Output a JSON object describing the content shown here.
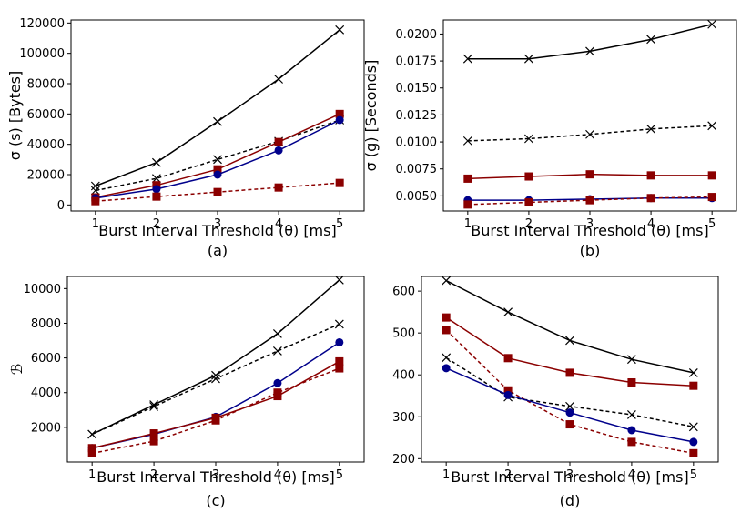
{
  "chart_data": [
    {
      "type": "line",
      "panel": "a",
      "caption": "(a)",
      "xlabel": "Burst Interval Threshold (θ) [ms]",
      "ylabel": "σ (s) [Bytes]",
      "x": [
        1,
        2,
        3,
        4,
        5
      ],
      "xticks": [
        "1",
        "2",
        "3",
        "4",
        "5"
      ],
      "xlim": [
        0.6,
        5.4
      ],
      "ylim": [
        -4000,
        122000
      ],
      "yticks": [
        0,
        20000,
        40000,
        60000,
        80000,
        100000,
        120000
      ],
      "yticklabels": [
        "0",
        "20000",
        "40000",
        "60000",
        "80000",
        "100000",
        "120000"
      ],
      "series": [
        {
          "name": "black-x-solid",
          "color": "#000000",
          "marker": "x",
          "dash": false,
          "values": [
            12500,
            28000,
            55000,
            83000,
            115500
          ]
        },
        {
          "name": "black-x-dashed",
          "color": "#000000",
          "marker": "x",
          "dash": true,
          "values": [
            9500,
            17500,
            30000,
            42000,
            56000
          ]
        },
        {
          "name": "red-square-solid",
          "color": "#8b0000",
          "marker": "square",
          "dash": false,
          "values": [
            5000,
            13000,
            23500,
            41500,
            60000
          ]
        },
        {
          "name": "blue-circle-solid",
          "color": "#00008b",
          "marker": "circle",
          "dash": false,
          "values": [
            4500,
            10500,
            20000,
            36000,
            56000
          ]
        },
        {
          "name": "red-square-dashed",
          "color": "#8b0000",
          "marker": "square",
          "dash": true,
          "values": [
            2500,
            5500,
            8500,
            11500,
            14500
          ]
        }
      ]
    },
    {
      "type": "line",
      "panel": "b",
      "caption": "(b)",
      "xlabel": "Burst Interval Threshold (θ) [ms]",
      "ylabel": "σ (g) [Seconds]",
      "x": [
        1,
        2,
        3,
        4,
        5
      ],
      "xticks": [
        "1",
        "2",
        "3",
        "4",
        "5"
      ],
      "xlim": [
        0.6,
        5.4
      ],
      "ylim": [
        0.0036,
        0.0213
      ],
      "yticks": [
        0.005,
        0.0075,
        0.01,
        0.0125,
        0.015,
        0.0175,
        0.02
      ],
      "yticklabels": [
        "0.0050",
        "0.0075",
        "0.0100",
        "0.0125",
        "0.0150",
        "0.0175",
        "0.0200"
      ],
      "series": [
        {
          "name": "black-x-solid",
          "color": "#000000",
          "marker": "x",
          "dash": false,
          "values": [
            0.0177,
            0.0177,
            0.0184,
            0.0195,
            0.0209
          ]
        },
        {
          "name": "black-x-dashed",
          "color": "#000000",
          "marker": "x",
          "dash": true,
          "values": [
            0.0101,
            0.0103,
            0.0107,
            0.0112,
            0.0115
          ]
        },
        {
          "name": "red-square-solid",
          "color": "#8b0000",
          "marker": "square",
          "dash": false,
          "values": [
            0.0066,
            0.0068,
            0.007,
            0.0069,
            0.0069
          ]
        },
        {
          "name": "blue-circle-solid",
          "color": "#00008b",
          "marker": "circle",
          "dash": false,
          "values": [
            0.0046,
            0.0046,
            0.0047,
            0.0048,
            0.0048
          ]
        },
        {
          "name": "red-square-dashed",
          "color": "#8b0000",
          "marker": "square",
          "dash": true,
          "values": [
            0.0042,
            0.0044,
            0.0046,
            0.0048,
            0.0049
          ]
        }
      ]
    },
    {
      "type": "line",
      "panel": "c",
      "caption": "(c)",
      "xlabel": "Burst Interval Threshold (θ) [ms]",
      "ylabel": "ℬ",
      "x": [
        1,
        2,
        3,
        4,
        5
      ],
      "xticks": [
        "1",
        "2",
        "3",
        "4",
        "5"
      ],
      "xlim": [
        0.6,
        5.4
      ],
      "ylim": [
        0,
        10700
      ],
      "yticks": [
        2000,
        4000,
        6000,
        8000,
        10000
      ],
      "yticklabels": [
        "2000",
        "4000",
        "6000",
        "8000",
        "10000"
      ],
      "series": [
        {
          "name": "black-x-solid",
          "color": "#000000",
          "marker": "x",
          "dash": false,
          "values": [
            1600,
            3300,
            5000,
            7400,
            10500
          ]
        },
        {
          "name": "black-x-dashed",
          "color": "#000000",
          "marker": "x",
          "dash": true,
          "values": [
            1600,
            3200,
            4800,
            6400,
            7950
          ]
        },
        {
          "name": "blue-circle-solid",
          "color": "#00008b",
          "marker": "circle",
          "dash": false,
          "values": [
            800,
            1600,
            2600,
            4550,
            6900
          ]
        },
        {
          "name": "red-square-solid",
          "color": "#8b0000",
          "marker": "square",
          "dash": false,
          "values": [
            800,
            1650,
            2550,
            3800,
            5800
          ]
        },
        {
          "name": "red-square-dashed",
          "color": "#8b0000",
          "marker": "square",
          "dash": true,
          "values": [
            500,
            1200,
            2400,
            4000,
            5400
          ]
        }
      ]
    },
    {
      "type": "line",
      "panel": "d",
      "caption": "(d)",
      "xlabel": "Burst Interval Threshold (θ) [ms]",
      "ylabel": "",
      "x": [
        1,
        2,
        3,
        4,
        5
      ],
      "xticks": [
        "1",
        "2",
        "3",
        "4",
        "5"
      ],
      "xlim": [
        0.6,
        5.4
      ],
      "ylim": [
        192,
        635
      ],
      "yticks": [
        200,
        300,
        400,
        500,
        600
      ],
      "yticklabels": [
        "200",
        "300",
        "400",
        "500",
        "600"
      ],
      "series": [
        {
          "name": "black-x-solid",
          "color": "#000000",
          "marker": "x",
          "dash": false,
          "values": [
            625,
            550,
            482,
            437,
            405
          ]
        },
        {
          "name": "red-square-solid",
          "color": "#8b0000",
          "marker": "square",
          "dash": false,
          "values": [
            537,
            440,
            405,
            382,
            374
          ]
        },
        {
          "name": "red-square-dashed",
          "color": "#8b0000",
          "marker": "square",
          "dash": true,
          "values": [
            507,
            363,
            282,
            240,
            213
          ]
        },
        {
          "name": "black-x-dashed",
          "color": "#000000",
          "marker": "x",
          "dash": true,
          "values": [
            441,
            347,
            325,
            305,
            276
          ]
        },
        {
          "name": "blue-circle-solid",
          "color": "#00008b",
          "marker": "circle",
          "dash": false,
          "values": [
            416,
            352,
            310,
            268,
            240
          ]
        }
      ]
    }
  ]
}
